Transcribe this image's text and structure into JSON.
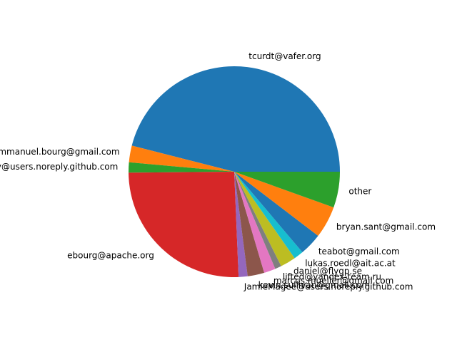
{
  "chart_data": {
    "type": "pie",
    "start_angle_deg": 0,
    "direction": "counterclockwise",
    "slices": [
      {
        "label": "tcurdt@vafer.org",
        "value": 46.9,
        "color": "#1f77b4"
      },
      {
        "label": "emmanuel.bourg@gmail.com",
        "value": 2.6,
        "color": "#ff7f0e"
      },
      {
        "label": "noreply@users.noreply.github.com",
        "value": 1.6,
        "color": "#2ca02c"
      },
      {
        "label": "ebourg@apache.org",
        "value": 26.0,
        "color": "#d62728"
      },
      {
        "label": "JamieMagee@users.noreply.github.com",
        "value": 1.4,
        "color": "#9467bd"
      },
      {
        "label": "kevin.sullivan@gmail.com",
        "value": 2.6,
        "color": "#8c564b"
      },
      {
        "label": "marcus.mueller@gmail.com",
        "value": 1.8,
        "color": "#e377c2"
      },
      {
        "label": "lifted@yandex-team.ru",
        "value": 1.0,
        "color": "#7f7f7f"
      },
      {
        "label": "daniel@flygp.se",
        "value": 2.4,
        "color": "#bcbd22"
      },
      {
        "label": "lukas.roedl@ait.ac.at",
        "value": 1.5,
        "color": "#17becf"
      },
      {
        "label": "teabot@gmail.com",
        "value": 3.5,
        "color": "#1f77b4"
      },
      {
        "label": "bryan.sant@gmail.com",
        "value": 5.0,
        "color": "#ff7f0e"
      },
      {
        "label": "other",
        "value": 5.6,
        "color": "#2ca02c"
      }
    ]
  }
}
